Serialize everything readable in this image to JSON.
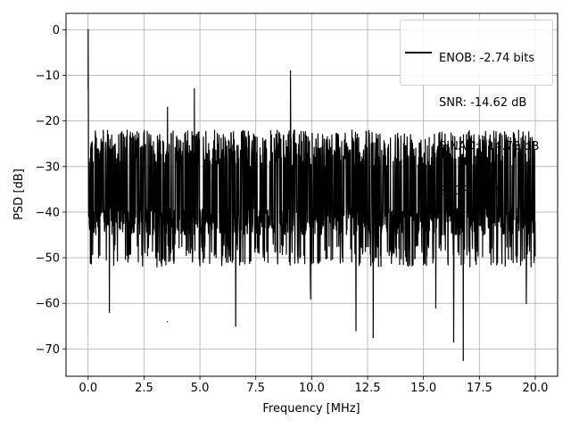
{
  "chart_data": {
    "type": "line",
    "title": "",
    "xlabel": "Frequency [MHz]",
    "ylabel": "PSD [dB]",
    "xlim": [
      -0.99,
      21.0
    ],
    "ylim": [
      -76.0,
      3.6
    ],
    "grid": true,
    "xticks": [
      0.0,
      2.5,
      5.0,
      7.5,
      10.0,
      12.5,
      15.0,
      17.5,
      20.0
    ],
    "xtick_labels": [
      "0.0",
      "2.5",
      "5.0",
      "7.5",
      "10.0",
      "12.5",
      "15.0",
      "17.5",
      "20.0"
    ],
    "yticks": [
      0,
      -10,
      -20,
      -30,
      -40,
      -50,
      -60,
      -70
    ],
    "ytick_labels": [
      "0",
      "−10",
      "−20",
      "−30",
      "−40",
      "−50",
      "−60",
      "−70"
    ],
    "legend": {
      "placement": "top-right",
      "lines": [
        "ENOB: -2.74 bits",
        "SNR: -14.62 dB",
        "SINAD: -14.73 dB",
        "SFDR: 3.19"
      ]
    },
    "series": [
      {
        "color": "#000000",
        "noise_band": {
          "x_range": [
            0.0,
            20.0
          ],
          "upper_typical": -22,
          "lower_typical": -42,
          "floor_typical": -47
        },
        "peaks": [
          {
            "x": 0.0,
            "y": 0.0
          },
          {
            "x": 9.05,
            "y": -9.0
          },
          {
            "x": 4.75,
            "y": -13.0
          },
          {
            "x": 3.55,
            "y": -17.0
          }
        ],
        "dips": [
          {
            "x": 0.95,
            "y": -62
          },
          {
            "x": 3.55,
            "y": -64
          },
          {
            "x": 6.6,
            "y": -65
          },
          {
            "x": 11.98,
            "y": -66
          },
          {
            "x": 12.75,
            "y": -67.5
          },
          {
            "x": 16.35,
            "y": -68.5
          },
          {
            "x": 16.78,
            "y": -72.5
          },
          {
            "x": 9.95,
            "y": -59
          },
          {
            "x": 15.55,
            "y": -61
          },
          {
            "x": 19.6,
            "y": -60
          }
        ]
      }
    ]
  }
}
